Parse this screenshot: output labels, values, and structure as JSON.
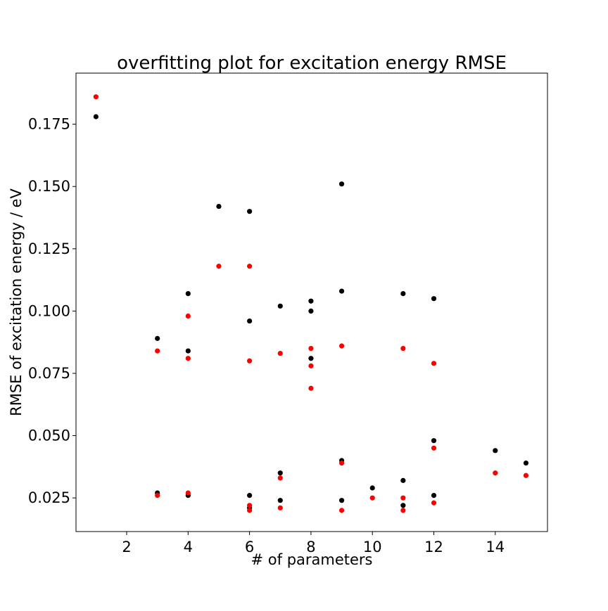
{
  "chart_data": {
    "type": "scatter",
    "title": "overfitting plot for excitation energy RMSE",
    "xlabel": "# of parameters",
    "ylabel": "RMSE of excitation energy / eV",
    "xlim": [
      0.35,
      15.7
    ],
    "ylim": [
      0.0115,
      0.1955
    ],
    "xticks": [
      2,
      4,
      6,
      8,
      10,
      12,
      14
    ],
    "yticks": [
      0.025,
      0.05,
      0.075,
      0.1,
      0.125,
      0.15,
      0.175
    ],
    "ytick_labels": [
      "0.025",
      "0.050",
      "0.075",
      "0.100",
      "0.125",
      "0.150",
      "0.175"
    ],
    "grid": false,
    "legend": null,
    "series": [
      {
        "color": "#000000",
        "points": [
          [
            1,
            0.178
          ],
          [
            3,
            0.089
          ],
          [
            3,
            0.027
          ],
          [
            4,
            0.107
          ],
          [
            4,
            0.084
          ],
          [
            4,
            0.026
          ],
          [
            5,
            0.142
          ],
          [
            6,
            0.14
          ],
          [
            6,
            0.096
          ],
          [
            6,
            0.026
          ],
          [
            6,
            0.021
          ],
          [
            7,
            0.102
          ],
          [
            7,
            0.035
          ],
          [
            7,
            0.024
          ],
          [
            8,
            0.104
          ],
          [
            8,
            0.1
          ],
          [
            8,
            0.081
          ],
          [
            9,
            0.151
          ],
          [
            9,
            0.108
          ],
          [
            9,
            0.04
          ],
          [
            9,
            0.024
          ],
          [
            10,
            0.029
          ],
          [
            11,
            0.107
          ],
          [
            11,
            0.032
          ],
          [
            11,
            0.022
          ],
          [
            12,
            0.105
          ],
          [
            12,
            0.048
          ],
          [
            12,
            0.026
          ],
          [
            14,
            0.044
          ],
          [
            15,
            0.039
          ]
        ]
      },
      {
        "color": "#ff0000",
        "points": [
          [
            1,
            0.186
          ],
          [
            3,
            0.084
          ],
          [
            3,
            0.026
          ],
          [
            4,
            0.098
          ],
          [
            4,
            0.081
          ],
          [
            4,
            0.027
          ],
          [
            5,
            0.118
          ],
          [
            6,
            0.118
          ],
          [
            6,
            0.08
          ],
          [
            6,
            0.022
          ],
          [
            6,
            0.02
          ],
          [
            7,
            0.083
          ],
          [
            7,
            0.033
          ],
          [
            7,
            0.021
          ],
          [
            8,
            0.085
          ],
          [
            8,
            0.078
          ],
          [
            8,
            0.069
          ],
          [
            9,
            0.086
          ],
          [
            9,
            0.039
          ],
          [
            9,
            0.02
          ],
          [
            10,
            0.025
          ],
          [
            11,
            0.085
          ],
          [
            11,
            0.025
          ],
          [
            11,
            0.02
          ],
          [
            12,
            0.079
          ],
          [
            12,
            0.045
          ],
          [
            12,
            0.023
          ],
          [
            14,
            0.035
          ],
          [
            15,
            0.034
          ]
        ]
      }
    ]
  }
}
